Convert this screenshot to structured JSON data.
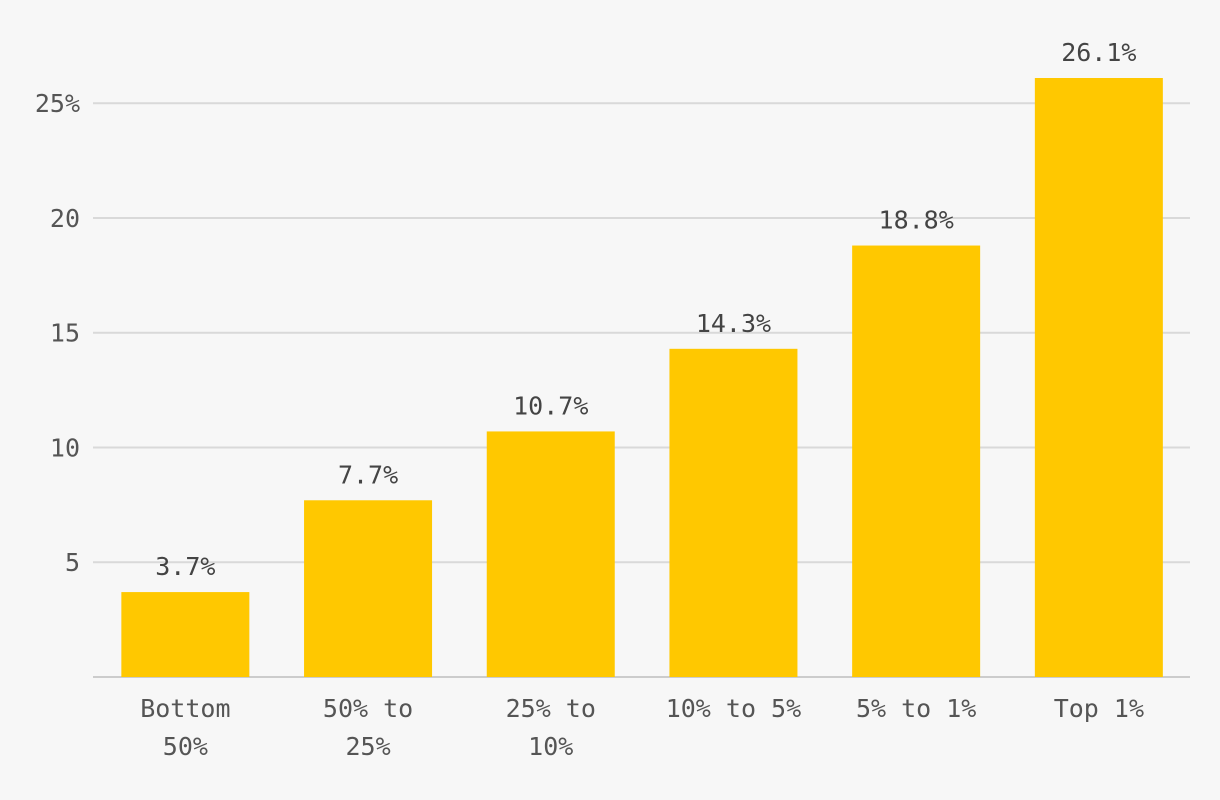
{
  "chart_data": {
    "type": "bar",
    "categories": [
      [
        "Bottom",
        "50%"
      ],
      [
        "50% to",
        "25%"
      ],
      [
        "25% to",
        "10%"
      ],
      [
        "10% to 5%"
      ],
      [
        "5% to 1%"
      ],
      [
        "Top 1%"
      ]
    ],
    "values": [
      3.7,
      7.7,
      10.7,
      14.3,
      18.8,
      26.1
    ],
    "data_labels": [
      "3.7%",
      "7.7%",
      "10.7%",
      "14.3%",
      "18.8%",
      "26.1%"
    ],
    "y_ticks": [
      {
        "value": 5,
        "label": "5"
      },
      {
        "value": 10,
        "label": "10"
      },
      {
        "value": 15,
        "label": "15"
      },
      {
        "value": 20,
        "label": "20"
      },
      {
        "value": 25,
        "label": "25%"
      }
    ],
    "ylim": [
      0,
      26.1
    ],
    "title": "",
    "xlabel": "",
    "ylabel": "",
    "grid": true,
    "colors": {
      "bar": "#ffc800",
      "background": "#f7f7f7",
      "grid": "#d9d9d9",
      "text": "#555555"
    }
  }
}
